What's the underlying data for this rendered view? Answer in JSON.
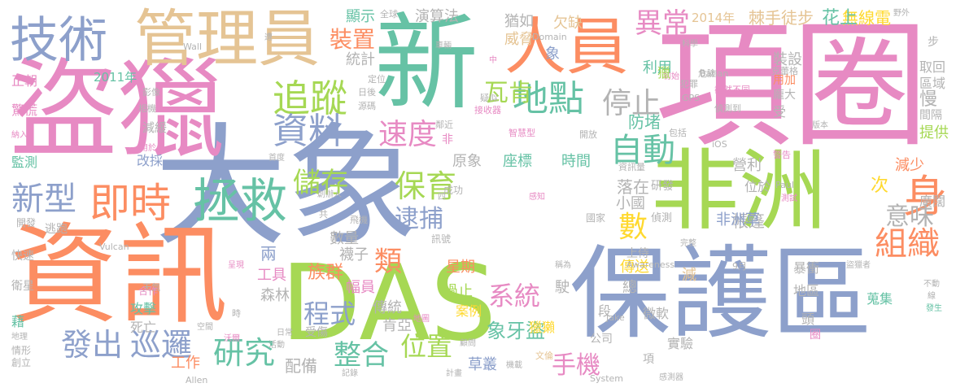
{
  "palette": {
    "blue": "#8da0cb",
    "green": "#66c2a5",
    "orange": "#fc8d62",
    "pink": "#e78ac3",
    "lime": "#a6d854",
    "yellow": "#ffd92f",
    "tan": "#e5c494",
    "grey": "#b3b3b3"
  },
  "words": [
    {
      "text": "大象",
      "color": "blue"
    },
    {
      "text": "DAS",
      "color": "lime"
    },
    {
      "text": "盜獵",
      "color": "pink"
    },
    {
      "text": "資訊",
      "color": "orange"
    },
    {
      "text": "保護區",
      "color": "blue"
    },
    {
      "text": "項圈",
      "color": "pink"
    },
    {
      "text": "新",
      "color": "green"
    },
    {
      "text": "非洲",
      "color": "lime"
    },
    {
      "text": "管理員",
      "color": "tan"
    },
    {
      "text": "人員",
      "color": "orange"
    },
    {
      "text": "技術",
      "color": "blue"
    },
    {
      "text": "拯救",
      "color": "green"
    },
    {
      "text": "即時",
      "color": "orange"
    },
    {
      "text": "追蹤",
      "color": "lime"
    },
    {
      "text": "資料",
      "color": "blue"
    },
    {
      "text": "地點",
      "color": "green"
    },
    {
      "text": "自動",
      "color": "green"
    },
    {
      "text": "身",
      "color": "orange"
    },
    {
      "text": "組織",
      "color": "orange"
    },
    {
      "text": "新型",
      "color": "blue"
    },
    {
      "text": "發出",
      "color": "blue"
    },
    {
      "text": "巡邏",
      "color": "blue"
    },
    {
      "text": "研究",
      "color": "green"
    },
    {
      "text": "保育",
      "color": "lime"
    },
    {
      "text": "速度",
      "color": "pink"
    },
    {
      "text": "停止",
      "color": "grey"
    },
    {
      "text": "異常",
      "color": "pink"
    },
    {
      "text": "瓦肯",
      "color": "lime"
    },
    {
      "text": "數",
      "color": "yellow"
    },
    {
      "text": "裝置",
      "color": "orange"
    },
    {
      "text": "逮捕",
      "color": "blue"
    },
    {
      "text": "儲存",
      "color": "lime"
    },
    {
      "text": "意味",
      "color": "grey"
    },
    {
      "text": "整合",
      "color": "green"
    },
    {
      "text": "位置",
      "color": "lime"
    },
    {
      "text": "手機",
      "color": "pink"
    },
    {
      "text": "系統",
      "color": "pink"
    },
    {
      "text": "象牙盜",
      "color": "green"
    },
    {
      "text": "程式",
      "color": "blue"
    },
    {
      "text": "類",
      "color": "orange"
    },
    {
      "text": "配備",
      "color": "grey"
    },
    {
      "text": "工作",
      "color": "orange"
    },
    {
      "text": "2014年",
      "color": "tan"
    },
    {
      "text": "棘手徒步",
      "color": "tan"
    },
    {
      "text": "無線電",
      "color": "yellow"
    },
    {
      "text": "花上",
      "color": "green"
    },
    {
      "text": "欠缺",
      "color": "tan"
    },
    {
      "text": "猶如",
      "color": "grey"
    },
    {
      "text": "威脅",
      "color": "tan"
    },
    {
      "text": "顯示",
      "color": "green"
    },
    {
      "text": "統計",
      "color": "grey"
    },
    {
      "text": "演算法",
      "color": "grey"
    },
    {
      "text": "全球",
      "color": "grey"
    },
    {
      "text": "防堵",
      "color": "green"
    },
    {
      "text": "利用",
      "color": "green"
    },
    {
      "text": "裝設",
      "color": "grey"
    },
    {
      "text": "取回",
      "color": "grey"
    },
    {
      "text": "區域",
      "color": "grey"
    },
    {
      "text": "慢",
      "color": "grey"
    },
    {
      "text": "提供",
      "color": "lime"
    },
    {
      "text": "營利",
      "color": "grey"
    },
    {
      "text": "減少",
      "color": "orange"
    },
    {
      "text": "廣闊",
      "color": "grey"
    },
    {
      "text": "帳篷",
      "color": "grey"
    },
    {
      "text": "次",
      "color": "yellow"
    },
    {
      "text": "落在",
      "color": "grey"
    },
    {
      "text": "小國",
      "color": "grey"
    },
    {
      "text": "非洲草",
      "color": "blue"
    },
    {
      "text": "研發",
      "color": "grey"
    },
    {
      "text": "位於",
      "color": "grey"
    },
    {
      "text": "座標",
      "color": "green"
    },
    {
      "text": "時間",
      "color": "green"
    },
    {
      "text": "原象",
      "color": "grey"
    },
    {
      "text": "數量",
      "color": "grey"
    },
    {
      "text": "襪子",
      "color": "grey"
    },
    {
      "text": "幅員",
      "color": "pink"
    },
    {
      "text": "星期",
      "color": "orange"
    },
    {
      "text": "過止",
      "color": "lime"
    },
    {
      "text": "族群",
      "color": "orange"
    },
    {
      "text": "森林",
      "color": "grey"
    },
    {
      "text": "傳統",
      "color": "grey"
    },
    {
      "text": "肯亞",
      "color": "grey"
    },
    {
      "text": "草叢",
      "color": "blue"
    },
    {
      "text": "案例",
      "color": "yellow"
    },
    {
      "text": "獵獺",
      "color": "yellow"
    },
    {
      "text": "駛",
      "color": "grey"
    },
    {
      "text": "總",
      "color": "grey"
    },
    {
      "text": "減",
      "color": "tan"
    },
    {
      "text": "段",
      "color": "grey"
    },
    {
      "text": "實驗",
      "color": "grey"
    },
    {
      "text": "地區",
      "color": "grey"
    },
    {
      "text": "蒐集",
      "color": "green"
    },
    {
      "text": "頭",
      "color": "grey"
    },
    {
      "text": "暴衝",
      "color": "grey"
    },
    {
      "text": "2011年",
      "color": "green"
    },
    {
      "text": "正朝",
      "color": "pink"
    },
    {
      "text": "驚慌",
      "color": "pink"
    },
    {
      "text": "監測",
      "color": "green"
    },
    {
      "text": "改採",
      "color": "blue"
    },
    {
      "text": "減緩",
      "color": "grey"
    },
    {
      "text": "逃跑",
      "color": "grey"
    },
    {
      "text": "快速",
      "color": "grey"
    },
    {
      "text": "攻擊",
      "color": "green"
    },
    {
      "text": "死亡",
      "color": "grey"
    },
    {
      "text": "衛星",
      "color": "grey"
    },
    {
      "text": "藉",
      "color": "green"
    },
    {
      "text": "情形",
      "color": "grey"
    },
    {
      "text": "創立",
      "color": "grey"
    },
    {
      "text": "開發",
      "color": "grey"
    },
    {
      "text": "兩",
      "color": "blue"
    },
    {
      "text": "工具",
      "color": "pink"
    },
    {
      "text": "受傷",
      "color": "grey"
    },
    {
      "text": "上侍",
      "color": "grey"
    },
    {
      "text": "傳送",
      "color": "yellow"
    },
    {
      "text": "公司",
      "color": "grey"
    },
    {
      "text": "微軟",
      "color": "grey"
    },
    {
      "text": "項",
      "color": "grey"
    },
    {
      "text": "圈",
      "color": "pink"
    },
    {
      "text": "Vulcan",
      "color": "grey"
    },
    {
      "text": "Allen",
      "color": "grey"
    },
    {
      "text": "Awareness",
      "color": "grey"
    },
    {
      "text": "System",
      "color": "grey"
    },
    {
      "text": "Paul",
      "color": "grey"
    },
    {
      "text": "Jake",
      "color": "grey"
    },
    {
      "text": "Domain",
      "color": "grey"
    },
    {
      "text": "Batian",
      "color": "grey"
    },
    {
      "text": "Wall",
      "color": "grey"
    },
    {
      "text": "GPS",
      "color": "grey"
    },
    {
      "text": "iOS",
      "color": "grey"
    },
    {
      "text": "9月",
      "color": "grey"
    },
    {
      "text": "危險",
      "color": "grey"
    },
    {
      "text": "偵測",
      "color": "grey"
    },
    {
      "text": "偵測到",
      "color": "grey"
    },
    {
      "text": "截然不同",
      "color": "pink"
    },
    {
      "text": "警告",
      "color": "pink"
    },
    {
      "text": "資訊量",
      "color": "grey"
    },
    {
      "text": "國家",
      "color": "grey"
    },
    {
      "text": "成功",
      "color": "grey"
    },
    {
      "text": "訊號",
      "color": "grey"
    },
    {
      "text": "飛機",
      "color": "grey"
    },
    {
      "text": "智慧型",
      "color": "pink"
    },
    {
      "text": "接收器",
      "color": "pink"
    },
    {
      "text": "科學",
      "color": "grey"
    },
    {
      "text": "野外",
      "color": "grey"
    },
    {
      "text": "初始",
      "color": "pink"
    },
    {
      "text": "完整",
      "color": "grey"
    },
    {
      "text": "感測器",
      "color": "grey"
    },
    {
      "text": "版本",
      "color": "grey"
    },
    {
      "text": "步",
      "color": "grey"
    },
    {
      "text": "創辦人",
      "color": "grey"
    },
    {
      "text": "天氣",
      "color": "grey"
    },
    {
      "text": "合作",
      "color": "pink"
    },
    {
      "text": "記錄",
      "color": "grey"
    },
    {
      "text": "活動",
      "color": "grey"
    },
    {
      "text": "日常",
      "color": "grey"
    },
    {
      "text": "空間",
      "color": "grey"
    },
    {
      "text": "相機",
      "color": "grey"
    },
    {
      "text": "影像",
      "color": "grey"
    },
    {
      "text": "納入",
      "color": "pink"
    },
    {
      "text": "用於",
      "color": "pink"
    },
    {
      "text": "首度",
      "color": "grey"
    },
    {
      "text": "鄰近",
      "color": "grey"
    },
    {
      "text": "定位",
      "color": "grey"
    },
    {
      "text": "日後",
      "color": "grey"
    },
    {
      "text": "源碼",
      "color": "grey"
    },
    {
      "text": "疑似",
      "color": "grey"
    },
    {
      "text": "開放",
      "color": "grey"
    },
    {
      "text": "包括",
      "color": "grey"
    },
    {
      "text": "犯罪",
      "color": "grey"
    },
    {
      "text": "克蕾格",
      "color": "grey"
    },
    {
      "text": "用加",
      "color": "orange"
    },
    {
      "text": "龐大",
      "color": "grey"
    },
    {
      "text": "間隔",
      "color": "grey"
    },
    {
      "text": "不動",
      "color": "grey"
    },
    {
      "text": "線",
      "color": "grey"
    },
    {
      "text": "發生",
      "color": "green"
    },
    {
      "text": "盜獵者",
      "color": "grey"
    },
    {
      "text": "稱為",
      "color": "grey"
    },
    {
      "text": "文倫",
      "color": "tan"
    },
    {
      "text": "機載",
      "color": "grey"
    },
    {
      "text": "計畫",
      "color": "grey"
    },
    {
      "text": "顧問",
      "color": "grey"
    },
    {
      "text": "地圖",
      "color": "pink"
    },
    {
      "text": "沃爾",
      "color": "pink"
    },
    {
      "text": "呈現",
      "color": "pink"
    },
    {
      "text": "時",
      "color": "grey"
    },
    {
      "text": "共",
      "color": "grey"
    },
    {
      "text": "四",
      "color": "grey"
    },
    {
      "text": "非",
      "color": "pink"
    },
    {
      "text": "中",
      "color": "pink"
    },
    {
      "text": "車輛",
      "color": "grey"
    },
    {
      "text": "遭",
      "color": "grey"
    },
    {
      "text": "地理",
      "color": "grey"
    },
    {
      "text": "象",
      "color": "blue"
    },
    {
      "text": "獵",
      "color": "lime"
    },
    {
      "text": "受",
      "color": "grey"
    },
    {
      "text": "感知",
      "color": "pink"
    },
    {
      "text": "測試",
      "color": "pink"
    }
  ]
}
